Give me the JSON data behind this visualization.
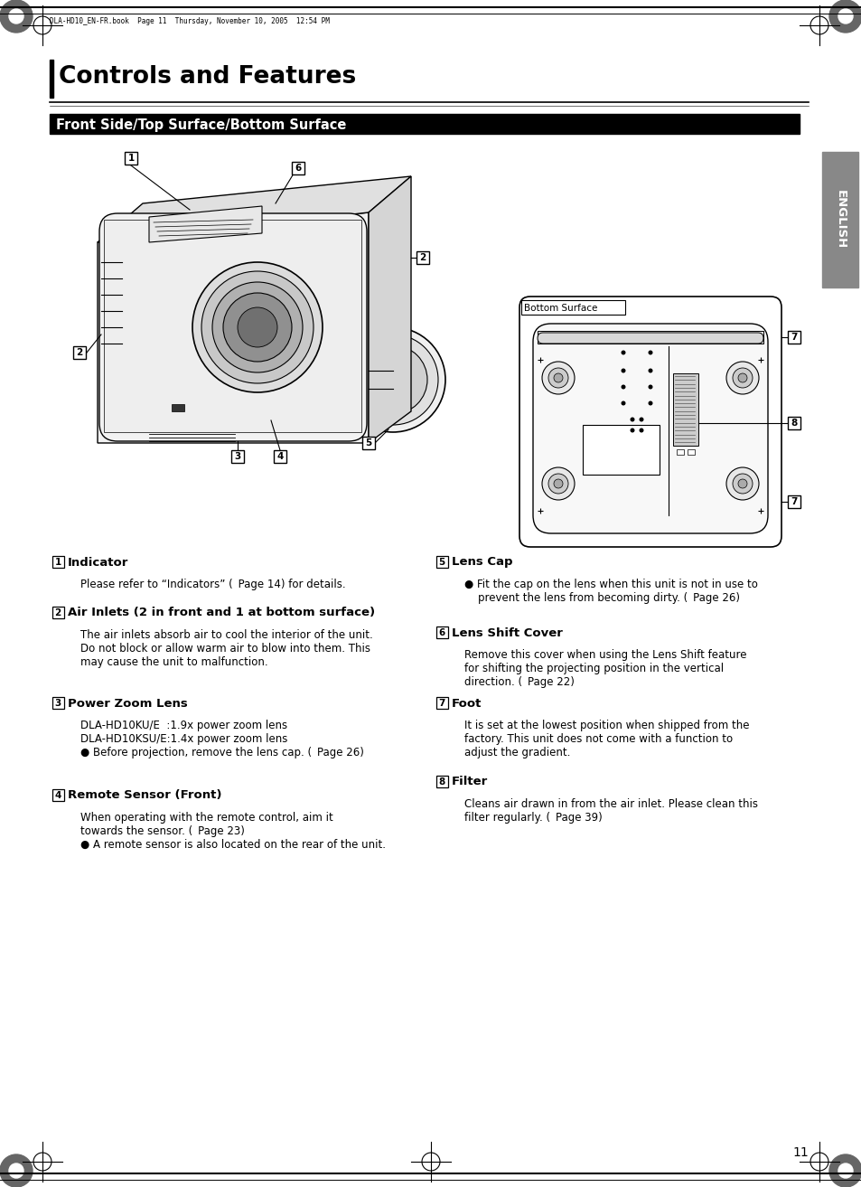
{
  "page_title": "Controls and Features",
  "section_header": "Front Side/Top Surface/Bottom Surface",
  "header_note": "DLA-HD10_EN-FR.book  Page 11  Thursday, November 10, 2005  12:54 PM",
  "page_number": "11",
  "sidebar_text": "ENGLISH",
  "bg_color": "#ffffff",
  "items": [
    {
      "num": "1",
      "title": "Indicator",
      "body": [
        "Please refer to “Indicators” ( Page 14) for details."
      ]
    },
    {
      "num": "2",
      "title": "Air Inlets (2 in front and 1 at bottom surface)",
      "body": [
        "The air inlets absorb air to cool the interior of the unit.",
        "Do not block or allow warm air to blow into them. This",
        "may cause the unit to malfunction."
      ]
    },
    {
      "num": "3",
      "title": "Power Zoom Lens",
      "body": [
        "DLA-HD10KU/E  :1.9x power zoom lens",
        "DLA-HD10KSU/E:1.4x power zoom lens",
        "● Before projection, remove the lens cap. ( Page 26)"
      ]
    },
    {
      "num": "4",
      "title": "Remote Sensor (Front)",
      "body": [
        "When operating with the remote control, aim it",
        "towards the sensor. ( Page 23)",
        "● A remote sensor is also located on the rear of the unit."
      ]
    },
    {
      "num": "5",
      "title": "Lens Cap",
      "body": [
        "● Fit the cap on the lens when this unit is not in use to",
        "    prevent the lens from becoming dirty. ( Page 26)"
      ]
    },
    {
      "num": "6",
      "title": "Lens Shift Cover",
      "body": [
        "Remove this cover when using the Lens Shift feature",
        "for shifting the projecting position in the vertical",
        "direction. ( Page 22)"
      ]
    },
    {
      "num": "7",
      "title": "Foot",
      "body": [
        "It is set at the lowest position when shipped from the",
        "factory. This unit does not come with a function to",
        "adjust the gradient."
      ]
    },
    {
      "num": "8",
      "title": "Filter",
      "body": [
        "Cleans air drawn in from the air inlet. Please clean this",
        "filter regularly. ( Page 39)"
      ]
    }
  ]
}
